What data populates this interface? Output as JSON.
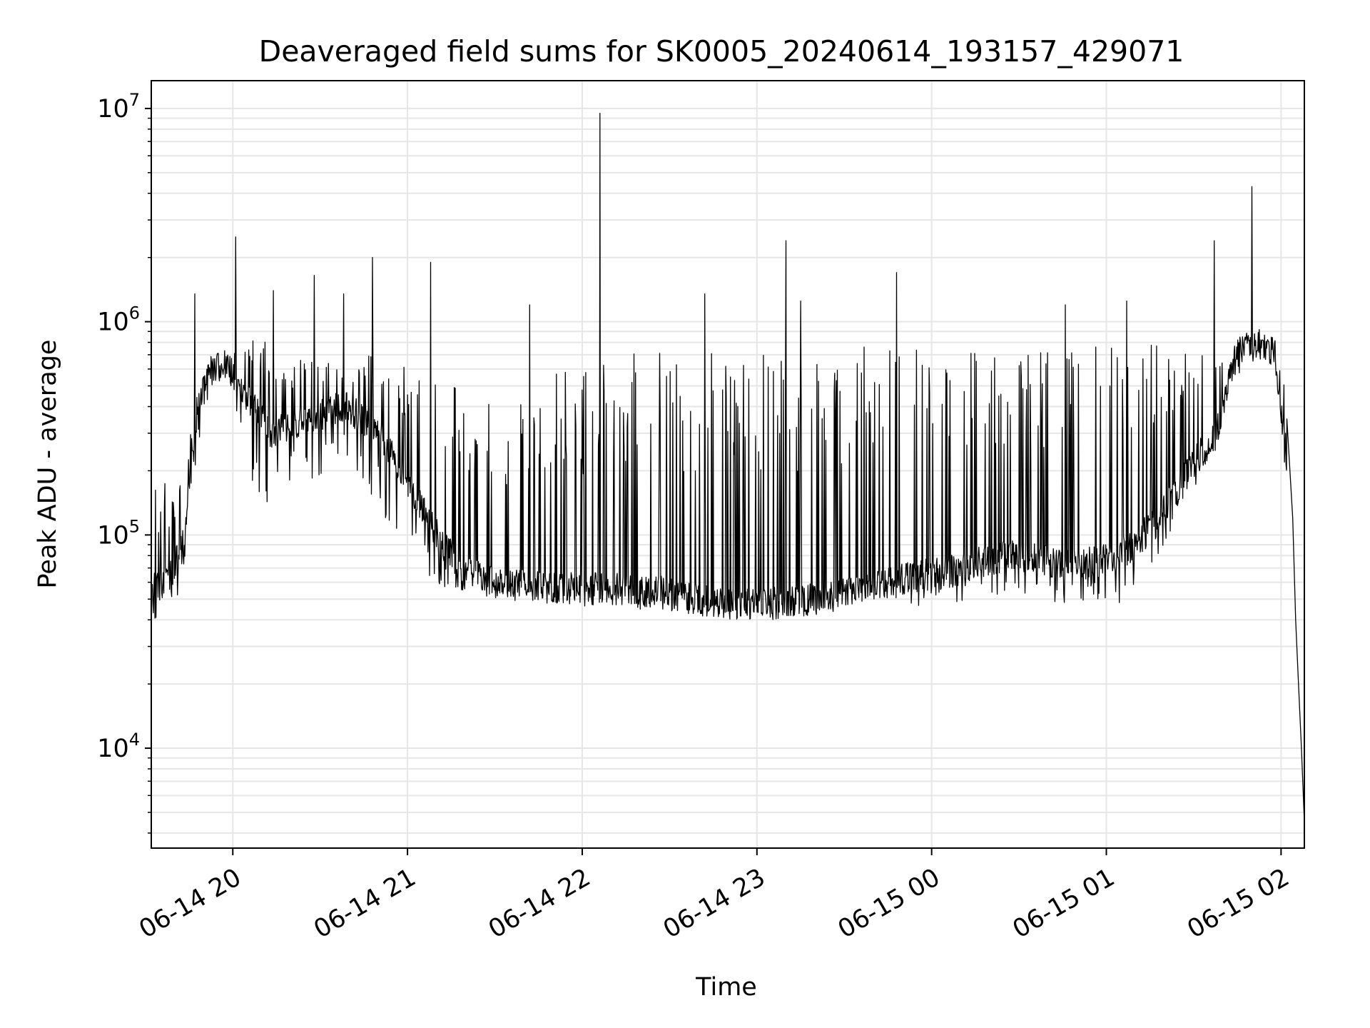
{
  "chart_data": {
    "type": "line",
    "title": "Deaveraged field sums for SK0005_20240614_193157_429071",
    "xlabel": "Time",
    "ylabel": "Peak ADU - average",
    "y_scale": "log",
    "ylim": [
      3400,
      13500000
    ],
    "xlim": [
      "06-14 19:32",
      "06-15 02:08"
    ],
    "x_ticks": [
      "06-14 20",
      "06-14 21",
      "06-14 22",
      "06-14 23",
      "06-15 00",
      "06-15 01",
      "06-15 02"
    ],
    "y_ticks": [
      {
        "base": "10",
        "exp": "4",
        "value": 10000
      },
      {
        "base": "10",
        "exp": "5",
        "value": 100000
      },
      {
        "base": "10",
        "exp": "6",
        "value": 1000000
      },
      {
        "base": "10",
        "exp": "7",
        "value": 10000000
      }
    ],
    "grid": true,
    "line_color": "#000000",
    "x_times": [
      "06-14 19:32",
      "06-14 19:38",
      "06-14 19:43",
      "06-14 19:48",
      "06-14 19:53",
      "06-14 19:58",
      "06-14 20:03",
      "06-14 20:08",
      "06-14 20:13",
      "06-14 20:18",
      "06-14 20:28",
      "06-14 20:38",
      "06-14 20:48",
      "06-14 20:58",
      "06-14 21:08",
      "06-14 21:18",
      "06-14 21:28",
      "06-14 21:38",
      "06-14 21:48",
      "06-14 21:58",
      "06-14 22:08",
      "06-14 22:18",
      "06-14 22:28",
      "06-14 22:38",
      "06-14 22:48",
      "06-14 22:58",
      "06-14 23:08",
      "06-14 23:18",
      "06-14 23:28",
      "06-14 23:38",
      "06-14 23:48",
      "06-14 23:58",
      "06-15 00:08",
      "06-15 00:18",
      "06-15 00:28",
      "06-15 00:38",
      "06-15 00:48",
      "06-15 00:58",
      "06-15 01:08",
      "06-15 01:18",
      "06-15 01:28",
      "06-15 01:38",
      "06-15 01:43",
      "06-15 01:48",
      "06-15 01:53",
      "06-15 01:58",
      "06-15 02:01",
      "06-15 02:04",
      "06-15 02:06",
      "06-15 02:08"
    ],
    "baseline": [
      55000,
      60000,
      90000,
      400000,
      600000,
      650000,
      500000,
      380000,
      300000,
      320000,
      360000,
      400000,
      330000,
      200000,
      110000,
      70000,
      60000,
      58000,
      57000,
      56000,
      56000,
      55000,
      54000,
      50000,
      48000,
      47000,
      48000,
      50000,
      52000,
      58000,
      62000,
      65000,
      68000,
      75000,
      80000,
      75000,
      72000,
      75000,
      85000,
      120000,
      200000,
      300000,
      600000,
      750000,
      780000,
      700000,
      300000,
      60000,
      15000,
      4500
    ],
    "peaks": [
      160000,
      190000,
      180000,
      500000,
      700000,
      750000,
      700000,
      900000,
      800000,
      700000,
      650000,
      700000,
      720000,
      700000,
      650000,
      480000,
      500000,
      500000,
      550000,
      650000,
      700000,
      720000,
      720000,
      760000,
      780000,
      780000,
      780000,
      780000,
      780000,
      770000,
      770000,
      770000,
      770000,
      780000,
      780000,
      780000,
      780000,
      780000,
      800000,
      820000,
      850000,
      850000,
      850000,
      850000,
      850000,
      850000,
      550000,
      80000,
      20000,
      5000
    ],
    "troughs": [
      40000,
      42000,
      60000,
      250000,
      500000,
      580000,
      300000,
      150000,
      130000,
      160000,
      180000,
      200000,
      150000,
      80000,
      60000,
      52000,
      48000,
      48000,
      48000,
      46000,
      46000,
      45000,
      44000,
      42000,
      40000,
      40000,
      40000,
      42000,
      44000,
      48000,
      50000,
      45000,
      48000,
      50000,
      52000,
      48000,
      45000,
      45000,
      50000,
      80000,
      150000,
      250000,
      500000,
      650000,
      700000,
      600000,
      200000,
      45000,
      10000,
      4500
    ],
    "spikes": [
      {
        "time": "06-14 19:47",
        "value": 1350000
      },
      {
        "time": "06-14 20:01",
        "value": 2500000
      },
      {
        "time": "06-14 20:14",
        "value": 1400000
      },
      {
        "time": "06-14 20:28",
        "value": 1650000
      },
      {
        "time": "06-14 20:38",
        "value": 1350000
      },
      {
        "time": "06-14 20:48",
        "value": 2000000
      },
      {
        "time": "06-14 21:08",
        "value": 1900000
      },
      {
        "time": "06-14 21:42",
        "value": 1200000
      },
      {
        "time": "06-14 22:06",
        "value": 9500000
      },
      {
        "time": "06-14 22:42",
        "value": 1350000
      },
      {
        "time": "06-14 23:10",
        "value": 2400000
      },
      {
        "time": "06-14 23:15",
        "value": 1250000
      },
      {
        "time": "06-14 23:48",
        "value": 1700000
      },
      {
        "time": "06-15 00:46",
        "value": 1200000
      },
      {
        "time": "06-15 01:07",
        "value": 1250000
      },
      {
        "time": "06-15 01:37",
        "value": 2400000
      },
      {
        "time": "06-15 01:50",
        "value": 4300000
      }
    ],
    "end_drop": [
      {
        "time": "06-15 02:02",
        "value": 350000
      },
      {
        "time": "06-15 02:04",
        "value": 120000
      },
      {
        "time": "06-15 02:05",
        "value": 40000
      },
      {
        "time": "06-15 02:06",
        "value": 20000
      },
      {
        "time": "06-15 02:07",
        "value": 10000
      },
      {
        "time": "06-15 02:08",
        "value": 4500
      }
    ]
  }
}
